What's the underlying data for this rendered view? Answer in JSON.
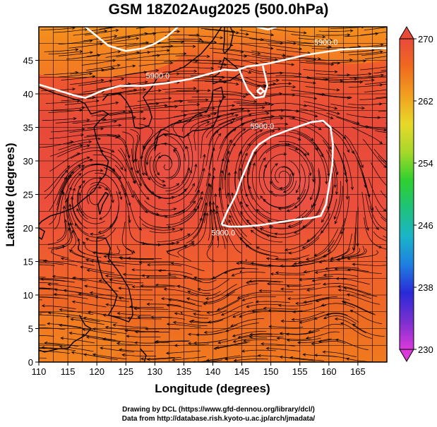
{
  "title": "GSM 18Z02Aug2025 (500.0hPa)",
  "xlabel": "Longitude (degrees)",
  "ylabel": "Latitude  (degrees)",
  "x_ticks": [
    110,
    115,
    120,
    125,
    130,
    135,
    140,
    145,
    150,
    155,
    160,
    165
  ],
  "y_ticks": [
    0,
    5,
    10,
    15,
    20,
    25,
    30,
    35,
    40,
    45
  ],
  "xlim": [
    110,
    170
  ],
  "ylim": [
    0,
    50
  ],
  "colorbar": {
    "ticks": [
      230,
      238,
      246,
      254,
      262,
      270
    ],
    "range": [
      230,
      270
    ],
    "colors": [
      "#d93ad9",
      "#7a2fd0",
      "#2a2ad8",
      "#1e7fe0",
      "#1bb5c8",
      "#1fc27a",
      "#2fd02f",
      "#a8d82a",
      "#e8d82a",
      "#f0a020",
      "#f06a20",
      "#e84a3a"
    ]
  },
  "contour_label": "5900.0",
  "contours": [
    {
      "name": "north",
      "points": [
        [
          110,
          41.4
        ],
        [
          113,
          40.6
        ],
        [
          116,
          39.8
        ],
        [
          118,
          39.4
        ],
        [
          121,
          40.5
        ],
        [
          124,
          41.2
        ],
        [
          128,
          41.2
        ],
        [
          132,
          41.6
        ],
        [
          136,
          42.2
        ],
        [
          139,
          42.9
        ],
        [
          142,
          43.6
        ],
        [
          144,
          43.5
        ],
        [
          146,
          44.1
        ],
        [
          148,
          44.3
        ],
        [
          150,
          44.6
        ],
        [
          153,
          45.2
        ],
        [
          156,
          45.8
        ],
        [
          159,
          46.2
        ],
        [
          162,
          46.6
        ],
        [
          166,
          46.8
        ],
        [
          170,
          46.8
        ]
      ]
    },
    {
      "name": "loop",
      "points": [
        [
          144.5,
          43.8
        ],
        [
          145.2,
          42.2
        ],
        [
          146.0,
          40.6
        ],
        [
          147.3,
          39.4
        ],
        [
          148.8,
          39.6
        ],
        [
          149.4,
          41.2
        ],
        [
          149.0,
          42.8
        ],
        [
          148.6,
          44.2
        ]
      ]
    },
    {
      "name": "center",
      "points": [
        [
          147.6,
          40.4
        ],
        [
          148.2,
          40.0
        ],
        [
          148.8,
          40.4
        ],
        [
          148.2,
          40.9
        ],
        [
          147.6,
          40.4
        ]
      ]
    },
    {
      "name": "high",
      "points": [
        [
          141.5,
          20.5
        ],
        [
          142.5,
          22.5
        ],
        [
          144,
          25
        ],
        [
          145,
          27.5
        ],
        [
          146,
          29.5
        ],
        [
          147,
          31.5
        ],
        [
          148,
          32.5
        ],
        [
          150,
          33.6
        ],
        [
          153,
          34.6
        ],
        [
          157,
          35.8
        ],
        [
          159,
          36
        ],
        [
          160.3,
          35
        ],
        [
          160.7,
          32.5
        ],
        [
          160.6,
          29.5
        ],
        [
          160,
          26
        ],
        [
          159.5,
          23.5
        ],
        [
          158.6,
          21.8
        ],
        [
          157,
          21.5
        ],
        [
          154,
          21.2
        ],
        [
          151,
          20.8
        ],
        [
          148,
          20.4
        ],
        [
          145,
          20.2
        ],
        [
          142.8,
          20.2
        ],
        [
          141.5,
          20.5
        ]
      ]
    },
    {
      "name": "northwest",
      "points": [
        [
          118,
          50
        ],
        [
          120,
          48.6
        ],
        [
          122,
          47.2
        ],
        [
          125,
          46.4
        ],
        [
          128,
          46.8
        ],
        [
          130,
          47.5
        ],
        [
          132,
          48.5
        ],
        [
          134,
          50
        ]
      ]
    },
    {
      "name": "northeast",
      "points": [
        [
          147.5,
          50
        ],
        [
          149.5,
          49.6
        ],
        [
          151,
          50
        ]
      ]
    }
  ],
  "contour_label_positions": [
    [
      130.5,
      42.3
    ],
    [
      148.5,
      34.8
    ],
    [
      141.8,
      18.9
    ],
    [
      159.5,
      47.3
    ]
  ]
}
